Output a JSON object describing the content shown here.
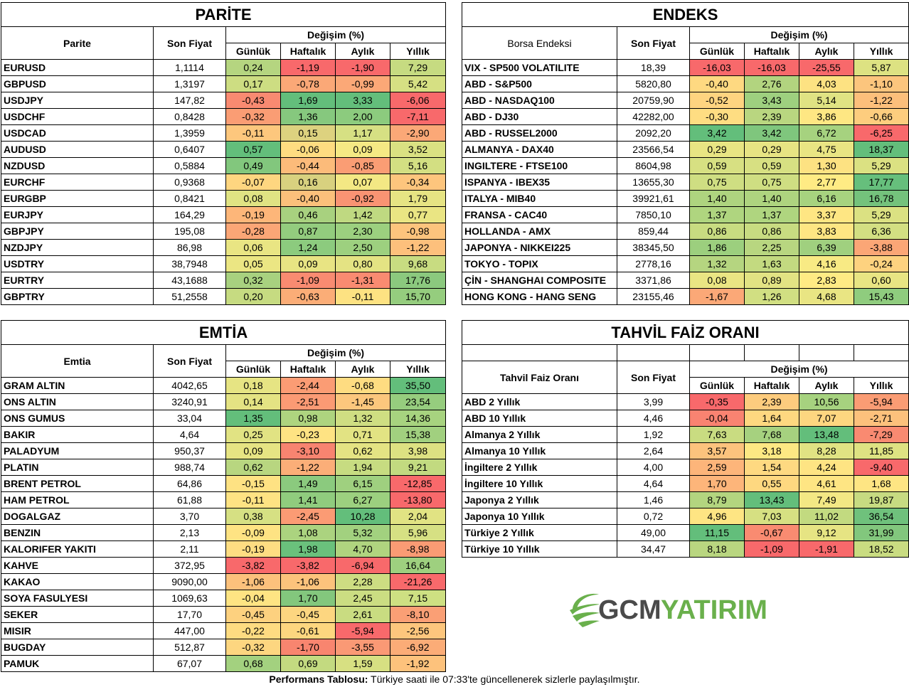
{
  "labels": {
    "son_fiyat": "Son Fiyat",
    "degisim": "Değişim (%)",
    "gunluk": "Günlük",
    "haftalik": "Haftalık",
    "aylik": "Aylık",
    "yillik": "Yıllık"
  },
  "parite": {
    "title": "PARİTE",
    "col_name": "Parite",
    "rows": [
      [
        "EURUSD",
        "1,1114",
        "0,24",
        "-1,19",
        "-1,90",
        "7,29"
      ],
      [
        "GBPUSD",
        "1,3197",
        "0,17",
        "-0,78",
        "-0,99",
        "5,42"
      ],
      [
        "USDJPY",
        "147,82",
        "-0,43",
        "1,69",
        "3,33",
        "-6,06"
      ],
      [
        "USDCHF",
        "0,8428",
        "-0,32",
        "1,36",
        "2,00",
        "-7,11"
      ],
      [
        "USDCAD",
        "1,3959",
        "-0,11",
        "0,15",
        "1,17",
        "-2,90"
      ],
      [
        "AUDUSD",
        "0,6407",
        "0,57",
        "-0,06",
        "0,09",
        "3,52"
      ],
      [
        "NZDUSD",
        "0,5884",
        "0,49",
        "-0,44",
        "-0,85",
        "5,16"
      ],
      [
        "EURCHF",
        "0,9368",
        "-0,07",
        "0,16",
        "0,07",
        "-0,34"
      ],
      [
        "EURGBP",
        "0,8421",
        "0,08",
        "-0,40",
        "-0,92",
        "1,79"
      ],
      [
        "EURJPY",
        "164,29",
        "-0,19",
        "0,46",
        "1,42",
        "0,77"
      ],
      [
        "GBPJPY",
        "195,08",
        "-0,28",
        "0,87",
        "2,30",
        "-0,98"
      ],
      [
        "NZDJPY",
        "86,98",
        "0,06",
        "1,24",
        "2,50",
        "-1,22"
      ],
      [
        "USDTRY",
        "38,7948",
        "0,05",
        "0,09",
        "0,80",
        "9,68"
      ],
      [
        "EURTRY",
        "43,1688",
        "0,32",
        "-1,09",
        "-1,31",
        "17,76"
      ],
      [
        "GBPTRY",
        "51,2558",
        "0,20",
        "-0,63",
        "-0,11",
        "15,70"
      ]
    ],
    "colors": [
      [
        "#b5d580",
        "#f8696b",
        "#f8696b",
        "#c6db81"
      ],
      [
        "#cddd82",
        "#fba877",
        "#fba877",
        "#d6e083"
      ],
      [
        "#f98a71",
        "#63be7b",
        "#63be7b",
        "#f8696b"
      ],
      [
        "#fa9d74",
        "#86c87e",
        "#8ccb7e",
        "#f8696b"
      ],
      [
        "#fdc77d",
        "#ddd27f",
        "#d6e083",
        "#fba877"
      ],
      [
        "#63be7b",
        "#fedc81",
        "#f5e984",
        "#dae182"
      ],
      [
        "#82c77d",
        "#fcbb7a",
        "#fa9d74",
        "#d3df82"
      ],
      [
        "#fed680",
        "#d8d17f",
        "#f3e884",
        "#fdc57d"
      ],
      [
        "#e0e383",
        "#fcc07b",
        "#f99373",
        "#e6e483"
      ],
      [
        "#fdb679",
        "#a8d17f",
        "#bfd981",
        "#eae583"
      ],
      [
        "#fba676",
        "#93cc7e",
        "#9cd07f",
        "#fdc47d"
      ],
      [
        "#e9e583",
        "#8ccb7e",
        "#9dd07f",
        "#fdc07c"
      ],
      [
        "#ebe683",
        "#e8e483",
        "#e4e383",
        "#c8dc81"
      ],
      [
        "#a8d17f",
        "#f98b71",
        "#f98b71",
        "#8bc97e"
      ],
      [
        "#c6db81",
        "#fbad77",
        "#fde282",
        "#95cd7e"
      ]
    ]
  },
  "endeks": {
    "title": "ENDEKS",
    "col_name": "Borsa Endeksi",
    "rows": [
      [
        "VIX  - SP500 VOLATILITE",
        "18,39",
        "-16,03",
        "-16,03",
        "-25,55",
        "5,87"
      ],
      [
        "ABD - S&P500",
        "5820,80",
        "-0,40",
        "2,76",
        "4,03",
        "-1,10"
      ],
      [
        "ABD - NASDAQ100",
        "20759,90",
        "-0,52",
        "3,43",
        "5,14",
        "-1,22"
      ],
      [
        "ABD - DJ30",
        "42282,00",
        "-0,30",
        "2,39",
        "3,86",
        "-0,66"
      ],
      [
        "ABD - RUSSEL2000",
        "2092,20",
        "3,42",
        "3,42",
        "6,72",
        "-6,25"
      ],
      [
        "ALMANYA - DAX40",
        "23566,54",
        "0,29",
        "0,29",
        "4,75",
        "18,37"
      ],
      [
        "INGILTERE - FTSE100",
        "8604,98",
        "0,59",
        "0,59",
        "1,30",
        "5,29"
      ],
      [
        "ISPANYA - IBEX35",
        "13655,30",
        "0,75",
        "0,75",
        "2,77",
        "17,77"
      ],
      [
        "ITALYA - MIB40",
        "39921,61",
        "1,40",
        "1,40",
        "6,16",
        "16,78"
      ],
      [
        "FRANSA - CAC40",
        "7850,10",
        "1,37",
        "1,37",
        "3,37",
        "5,29"
      ],
      [
        "HOLLANDA - AMX",
        "859,44",
        "0,86",
        "0,86",
        "3,83",
        "6,36"
      ],
      [
        "JAPONYA - NIKKEI225",
        "38345,50",
        "1,86",
        "2,25",
        "6,39",
        "-3,88"
      ],
      [
        "TOKYO - TOPIX",
        "2778,16",
        "1,32",
        "1,63",
        "4,16",
        "-0,24"
      ],
      [
        "ÇİN - SHANGHAI COMPOSITE",
        "3371,86",
        "0,08",
        "0,89",
        "2,83",
        "0,60"
      ],
      [
        "HONG KONG - HANG SENG",
        "23155,46",
        "-1,67",
        "1,26",
        "4,68",
        "15,43"
      ]
    ],
    "colors": [
      [
        "#f8696b",
        "#f8696b",
        "#f8696b",
        "#dde282"
      ],
      [
        "#fed981",
        "#b2d47f",
        "#fde282",
        "#fcc57d"
      ],
      [
        "#fed480",
        "#9ed07f",
        "#e0e383",
        "#fcbf7b"
      ],
      [
        "#fedd82",
        "#b9d680",
        "#fee783",
        "#fdcd7e"
      ],
      [
        "#63be7b",
        "#7fc67d",
        "#a6d27f",
        "#f8696b"
      ],
      [
        "#e8e583",
        "#e7e483",
        "#e9e583",
        "#63be7b"
      ],
      [
        "#d7e082",
        "#d7e082",
        "#fde282",
        "#dbe182"
      ],
      [
        "#cfde82",
        "#cfde82",
        "#ffeb84",
        "#66bf7c"
      ],
      [
        "#aed47f",
        "#aed47f",
        "#a7d37f",
        "#74c27c"
      ],
      [
        "#afd57f",
        "#afd57f",
        "#fee683",
        "#dbe182"
      ],
      [
        "#c8dc81",
        "#c8dc81",
        "#fee683",
        "#d3df82"
      ],
      [
        "#9ccf7e",
        "#b8d680",
        "#a0d07f",
        "#fba676"
      ],
      [
        "#b5d580",
        "#c3da80",
        "#f8ea84",
        "#fdd27f"
      ],
      [
        "#eae583",
        "#e2e383",
        "#ffeb84",
        "#e8e583"
      ],
      [
        "#fba877",
        "#d1df82",
        "#e9e583",
        "#8fcc7e"
      ]
    ]
  },
  "emtia": {
    "title": "EMTİA",
    "col_name": "Emtia",
    "rows": [
      [
        "GRAM ALTIN",
        "4042,65",
        "0,18",
        "-2,44",
        "-0,68",
        "35,50"
      ],
      [
        "ONS ALTIN",
        "3240,91",
        "0,14",
        "-2,51",
        "-1,45",
        "23,54"
      ],
      [
        "ONS GUMUS",
        "33,04",
        "1,35",
        "0,98",
        "1,32",
        "14,36"
      ],
      [
        "BAKIR",
        "4,64",
        "0,25",
        "-0,23",
        "0,71",
        "15,38"
      ],
      [
        "PALADYUM",
        "950,37",
        "0,09",
        "-3,10",
        "0,62",
        "3,98"
      ],
      [
        "PLATIN",
        "988,74",
        "0,62",
        "-1,22",
        "1,94",
        "9,21"
      ],
      [
        "BRENT PETROL",
        "64,86",
        "-0,15",
        "1,49",
        "6,15",
        "-12,85"
      ],
      [
        "HAM PETROL",
        "61,88",
        "-0,11",
        "1,41",
        "6,27",
        "-13,80"
      ],
      [
        "DOGALGAZ",
        "3,70",
        "0,38",
        "-2,45",
        "10,28",
        "2,04"
      ],
      [
        "BENZIN",
        "2,13",
        "-0,09",
        "1,08",
        "5,32",
        "5,96"
      ],
      [
        "KALORIFER YAKITI",
        "2,11",
        "-0,19",
        "1,98",
        "4,70",
        "-8,98"
      ],
      [
        "KAHVE",
        "372,95",
        "-3,82",
        "-3,82",
        "-6,94",
        "16,64"
      ],
      [
        "KAKAO",
        "9090,00",
        "-1,06",
        "-1,06",
        "2,28",
        "-21,26"
      ],
      [
        "SOYA FASULYESI",
        "1069,63",
        "-0,04",
        "1,70",
        "2,45",
        "7,15"
      ],
      [
        "SEKER",
        "17,70",
        "-0,45",
        "-0,45",
        "2,61",
        "-8,10"
      ],
      [
        "MISIR",
        "447,00",
        "-0,22",
        "-0,61",
        "-5,94",
        "-2,56"
      ],
      [
        "BUGDAY",
        "512,87",
        "-0,32",
        "-1,70",
        "-3,55",
        "-6,92"
      ],
      [
        "PAMUK",
        "67,07",
        "0,68",
        "0,69",
        "1,59",
        "-1,92"
      ]
    ],
    "colors": [
      [
        "#e6e483",
        "#fb9c74",
        "#fedc81",
        "#63be7b"
      ],
      [
        "#e4e383",
        "#fb9a74",
        "#fcc77d",
        "#96cd7e"
      ],
      [
        "#63be7b",
        "#aed47f",
        "#cfde82",
        "#a7d37f"
      ],
      [
        "#e1e383",
        "#fee383",
        "#e2e383",
        "#a1d07f"
      ],
      [
        "#e6e483",
        "#f88470",
        "#e4e383",
        "#dde182"
      ],
      [
        "#b8d680",
        "#fbae78",
        "#c7dc81",
        "#c2da80"
      ],
      [
        "#fee283",
        "#8bca7e",
        "#9fd07f",
        "#f8696b"
      ],
      [
        "#fee383",
        "#90cc7e",
        "#9cd07f",
        "#f8696b"
      ],
      [
        "#d6e083",
        "#fb9b74",
        "#63be7b",
        "#e1e383"
      ],
      [
        "#fee383",
        "#abd37f",
        "#a2d17f",
        "#d6e083"
      ],
      [
        "#fedd82",
        "#6ac17c",
        "#b0d47f",
        "#fa9b74"
      ],
      [
        "#f8696b",
        "#f8696b",
        "#f8696b",
        "#9ed07f"
      ],
      [
        "#fcc17c",
        "#fcc37c",
        "#cddd82",
        "#f8696b"
      ],
      [
        "#fee483",
        "#83c77d",
        "#cbdd82",
        "#cee082"
      ],
      [
        "#fdd17f",
        "#fdd680",
        "#c9dc81",
        "#fa9f75"
      ],
      [
        "#fedb81",
        "#fdd67f",
        "#f8696b",
        "#fdc67d"
      ],
      [
        "#fdd680",
        "#f8856f",
        "#fa9975",
        "#fbac77"
      ],
      [
        "#a3d17f",
        "#c3da80",
        "#d7e082",
        "#fdc27c"
      ]
    ]
  },
  "tahvil": {
    "title": "TAHVİL FAİZ ORANI",
    "col_name": "Tahvil Faiz Oranı",
    "rows": [
      [
        "ABD 2 Yıllık",
        "3,99",
        "-0,35",
        "2,39",
        "10,56",
        "-5,94"
      ],
      [
        "ABD 10 Yıllık",
        "4,46",
        "-0,04",
        "1,64",
        "7,07",
        "-2,71"
      ],
      [
        "Almanya 2 Yıllık",
        "1,92",
        "7,63",
        "7,68",
        "13,48",
        "-7,29"
      ],
      [
        "Almanya 10 Yıllık",
        "2,64",
        "3,57",
        "3,18",
        "8,28",
        "11,85"
      ],
      [
        "İngiltere 2 Yıllık",
        "4,00",
        "2,59",
        "1,54",
        "4,24",
        "-9,40"
      ],
      [
        "İngiltere 10 Yıllık",
        "4,64",
        "1,70",
        "0,55",
        "4,61",
        "1,68"
      ],
      [
        "Japonya 2 Yıllık",
        "1,46",
        "8,79",
        "13,43",
        "7,49",
        "19,87"
      ],
      [
        "Japonya 10 Yıllık",
        "0,72",
        "4,96",
        "7,03",
        "11,02",
        "36,54"
      ],
      [
        "Türkiye 2 Yıllık",
        "49,00",
        "11,15",
        "-0,67",
        "9,12",
        "31,99"
      ],
      [
        "Türkiye 10 Yıllık",
        "34,47",
        "8,18",
        "-1,09",
        "-1,91",
        "18,52"
      ]
    ],
    "colors": [
      [
        "#f8696b",
        "#fdcc7e",
        "#a6d27f",
        "#fa9c74"
      ],
      [
        "#f98371",
        "#fed880",
        "#fdd680",
        "#fcc17c"
      ],
      [
        "#c9dc81",
        "#a6d17f",
        "#63be7b",
        "#f98a71"
      ],
      [
        "#fcc37d",
        "#fde883",
        "#e1e383",
        "#dee282"
      ],
      [
        "#fdb57a",
        "#fed981",
        "#fee483",
        "#f8696b"
      ],
      [
        "#fdb57a",
        "#fed880",
        "#fee583",
        "#fee583"
      ],
      [
        "#b3d57f",
        "#63be7b",
        "#f3e884",
        "#c7db81"
      ],
      [
        "#fee583",
        "#d6e082",
        "#c2da80",
        "#6fc17c"
      ],
      [
        "#63be7b",
        "#f98b71",
        "#e6e483",
        "#82c77d"
      ],
      [
        "#b9d680",
        "#f8696b",
        "#f8696b",
        "#c9dc81"
      ]
    ]
  },
  "logo": {
    "text": "GCMYATIRIM",
    "part1": "GCM",
    "part2": "YATIRIM",
    "color1": "#4a4a4a",
    "color2": "#6ab04c"
  },
  "footer": {
    "bold": "Performans Tablosu:",
    "text": " Türkiye saati ile 07:33'te güncellenerek sizlerle paylaşılmıştır."
  }
}
